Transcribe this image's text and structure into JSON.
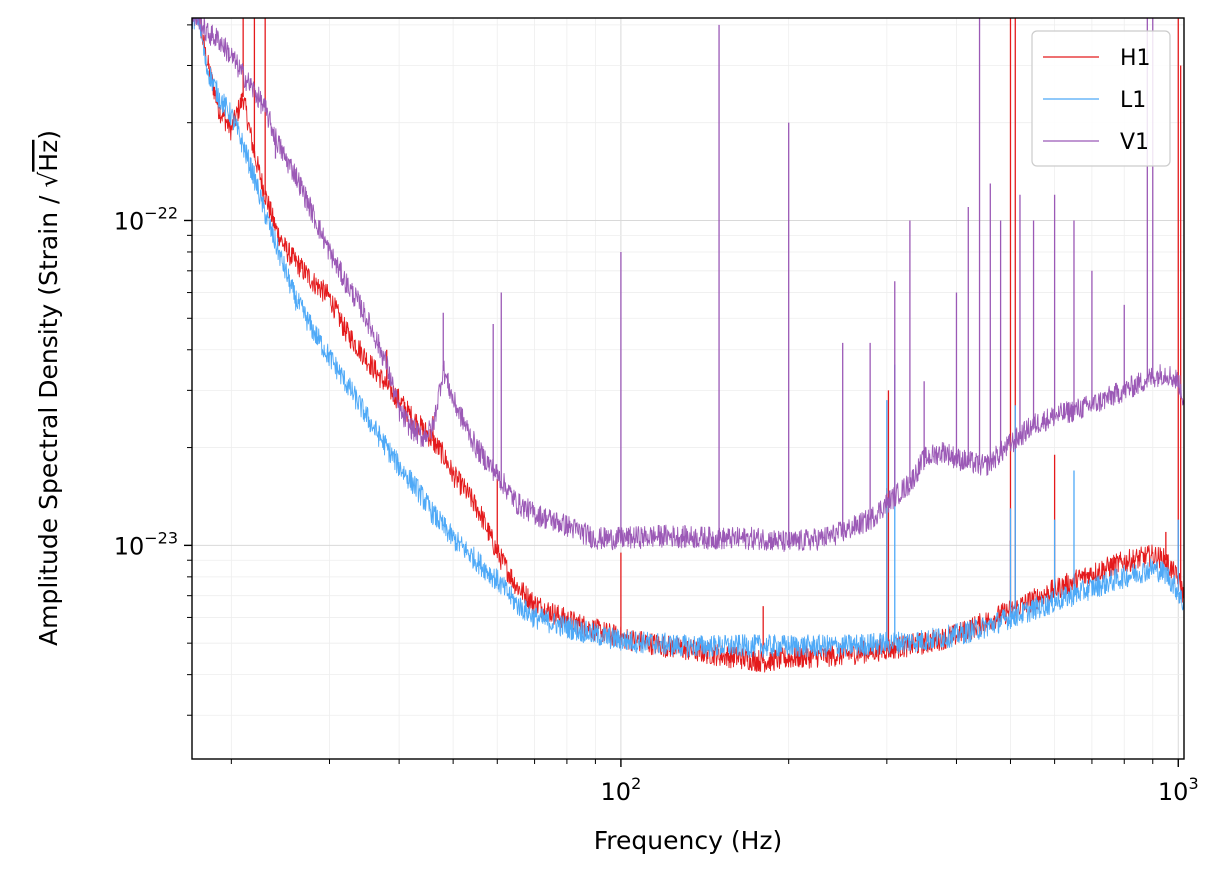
{
  "chart_data": {
    "type": "line",
    "title": "",
    "xlabel": "Frequency (Hz)",
    "ylabel_prefix": "Amplitude Spectral Density (Strain / ",
    "ylabel_sqrt": "√",
    "ylabel_unit": "Hz",
    "ylabel_suffix": ")",
    "xscale": "log",
    "yscale": "log",
    "xlim": [
      17,
      1024
    ],
    "ylim": [
      2.2e-24,
      4.2e-22
    ],
    "grid": true,
    "legend_position": "top-right",
    "x_ticks": [
      {
        "value": 100,
        "base": "10",
        "exp": "2"
      },
      {
        "value": 1000,
        "base": "10",
        "exp": "3"
      }
    ],
    "y_ticks": [
      {
        "value": 1e-23,
        "base": "10",
        "exp": "−23"
      },
      {
        "value": 1e-22,
        "base": "10",
        "exp": "−22"
      }
    ],
    "series": [
      {
        "name": "H1",
        "color": "#e41a1c",
        "points": [
          [
            17.5,
            4.2e-22
          ],
          [
            18,
            3.2e-22
          ],
          [
            19,
            2.2e-22
          ],
          [
            20,
            1.9e-22
          ],
          [
            21,
            2.4e-22
          ],
          [
            22,
            1.6e-22
          ],
          [
            23,
            1.2e-22
          ],
          [
            24,
            9.5e-23
          ],
          [
            25,
            8.2e-23
          ],
          [
            26,
            7.5e-23
          ],
          [
            28,
            6.5e-23
          ],
          [
            30,
            5.8e-23
          ],
          [
            32,
            4.6e-23
          ],
          [
            34,
            4e-23
          ],
          [
            36,
            3.5e-23
          ],
          [
            38,
            3.1e-23
          ],
          [
            40,
            2.8e-23
          ],
          [
            42,
            2.5e-23
          ],
          [
            45,
            2.2e-23
          ],
          [
            48,
            1.9e-23
          ],
          [
            50,
            1.65e-23
          ],
          [
            53,
            1.45e-23
          ],
          [
            56,
            1.25e-23
          ],
          [
            60,
            9.5e-24
          ],
          [
            65,
            7.5e-24
          ],
          [
            70,
            6.6e-24
          ],
          [
            80,
            5.9e-24
          ],
          [
            90,
            5.5e-24
          ],
          [
            100,
            5.2e-24
          ],
          [
            120,
            4.9e-24
          ],
          [
            150,
            4.6e-24
          ],
          [
            180,
            4.4e-24
          ],
          [
            200,
            4.5e-24
          ],
          [
            250,
            4.6e-24
          ],
          [
            300,
            4.8e-24
          ],
          [
            350,
            5e-24
          ],
          [
            400,
            5.3e-24
          ],
          [
            450,
            5.8e-24
          ],
          [
            500,
            6.3e-24
          ],
          [
            600,
            7.3e-24
          ],
          [
            700,
            8.2e-24
          ],
          [
            800,
            8.9e-24
          ],
          [
            900,
            9.3e-24
          ],
          [
            950,
            9e-24
          ],
          [
            1000,
            7.8e-24
          ],
          [
            1024,
            7e-24
          ]
        ],
        "lines": [
          [
            21,
            4.2e-22
          ],
          [
            22,
            4.2e-22
          ],
          [
            23,
            4.2e-22
          ],
          [
            29,
            6.5e-23
          ],
          [
            38,
            4e-23
          ],
          [
            46,
            2.5e-23
          ],
          [
            60,
            1.6e-23
          ],
          [
            100,
            9.5e-24
          ],
          [
            180,
            6.5e-24
          ],
          [
            300,
            1.5e-23
          ],
          [
            302,
            3e-23
          ],
          [
            500,
            4.2e-22
          ],
          [
            510,
            4.2e-22
          ],
          [
            600,
            1.9e-23
          ],
          [
            950,
            1.1e-23
          ],
          [
            1000,
            4.2e-22
          ],
          [
            1010,
            3e-22
          ]
        ]
      },
      {
        "name": "L1",
        "color": "#4ea9f7",
        "points": [
          [
            17.5,
            4.2e-22
          ],
          [
            18,
            3e-22
          ],
          [
            19,
            2.4e-22
          ],
          [
            20,
            2.1e-22
          ],
          [
            21,
            1.7e-22
          ],
          [
            22,
            1.35e-22
          ],
          [
            23,
            1.05e-22
          ],
          [
            24,
            8.5e-23
          ],
          [
            25,
            7e-23
          ],
          [
            26,
            5.8e-23
          ],
          [
            28,
            4.6e-23
          ],
          [
            30,
            3.8e-23
          ],
          [
            32,
            3.2e-23
          ],
          [
            34,
            2.7e-23
          ],
          [
            36,
            2.3e-23
          ],
          [
            38,
            2e-23
          ],
          [
            40,
            1.75e-23
          ],
          [
            43,
            1.5e-23
          ],
          [
            46,
            1.25e-23
          ],
          [
            50,
            1.05e-23
          ],
          [
            55,
            9e-24
          ],
          [
            60,
            7.8e-24
          ],
          [
            65,
            6.6e-24
          ],
          [
            70,
            6e-24
          ],
          [
            80,
            5.6e-24
          ],
          [
            90,
            5.3e-24
          ],
          [
            100,
            5.1e-24
          ],
          [
            130,
            4.9e-24
          ],
          [
            160,
            4.9e-24
          ],
          [
            200,
            4.9e-24
          ],
          [
            250,
            4.9e-24
          ],
          [
            300,
            5e-24
          ],
          [
            350,
            5.1e-24
          ],
          [
            400,
            5.3e-24
          ],
          [
            450,
            5.6e-24
          ],
          [
            500,
            6e-24
          ],
          [
            600,
            6.7e-24
          ],
          [
            700,
            7.4e-24
          ],
          [
            800,
            8e-24
          ],
          [
            900,
            8.5e-24
          ],
          [
            950,
            8.2e-24
          ],
          [
            1000,
            7.2e-24
          ],
          [
            1024,
            6.5e-24
          ]
        ],
        "lines": [
          [
            300,
            2.8e-23
          ],
          [
            310,
            3.6e-23
          ],
          [
            500,
            1.3e-23
          ],
          [
            510,
            2.7e-23
          ],
          [
            600,
            1.2e-23
          ],
          [
            650,
            1.7e-23
          ],
          [
            1000,
            1.2e-23
          ]
        ]
      },
      {
        "name": "V1",
        "color": "#9b59b6",
        "points": [
          [
            17.5,
            4.2e-22
          ],
          [
            18,
            3.8e-22
          ],
          [
            19,
            3.6e-22
          ],
          [
            20,
            3.2e-22
          ],
          [
            21,
            2.8e-22
          ],
          [
            22,
            2.5e-22
          ],
          [
            23,
            2.2e-22
          ],
          [
            24,
            1.8e-22
          ],
          [
            25,
            1.55e-22
          ],
          [
            26,
            1.4e-22
          ],
          [
            28,
            1.05e-22
          ],
          [
            30,
            8e-23
          ],
          [
            32,
            6.5e-23
          ],
          [
            34,
            5.5e-23
          ],
          [
            36,
            4.5e-23
          ],
          [
            38,
            3.6e-23
          ],
          [
            40,
            2.6e-23
          ],
          [
            42,
            2.3e-23
          ],
          [
            44,
            2.15e-23
          ],
          [
            46,
            2.3e-23
          ],
          [
            48,
            3.5e-23
          ],
          [
            50,
            2.8e-23
          ],
          [
            55,
            2e-23
          ],
          [
            60,
            1.65e-23
          ],
          [
            65,
            1.35e-23
          ],
          [
            70,
            1.25e-23
          ],
          [
            80,
            1.15e-23
          ],
          [
            90,
            1.05e-23
          ],
          [
            100,
            1.05e-23
          ],
          [
            120,
            1.07e-23
          ],
          [
            150,
            1.05e-23
          ],
          [
            180,
            1.05e-23
          ],
          [
            200,
            1.02e-23
          ],
          [
            230,
            1.05e-23
          ],
          [
            250,
            1.1e-23
          ],
          [
            280,
            1.2e-23
          ],
          [
            300,
            1.35e-23
          ],
          [
            330,
            1.55e-23
          ],
          [
            350,
            1.85e-23
          ],
          [
            380,
            1.95e-23
          ],
          [
            400,
            1.85e-23
          ],
          [
            450,
            1.75e-23
          ],
          [
            500,
            2.05e-23
          ],
          [
            550,
            2.35e-23
          ],
          [
            600,
            2.5e-23
          ],
          [
            700,
            2.7e-23
          ],
          [
            800,
            3e-23
          ],
          [
            900,
            3.3e-23
          ],
          [
            950,
            3.4e-23
          ],
          [
            1000,
            3.2e-23
          ],
          [
            1024,
            2.8e-23
          ]
        ],
        "lines": [
          [
            24,
            1.55e-22
          ],
          [
            48,
            5.2e-23
          ],
          [
            59,
            4.8e-23
          ],
          [
            61,
            6e-23
          ],
          [
            100,
            8e-23
          ],
          [
            150,
            4e-22
          ],
          [
            200,
            2e-22
          ],
          [
            250,
            4.2e-23
          ],
          [
            280,
            4.2e-23
          ],
          [
            310,
            6.5e-23
          ],
          [
            330,
            1e-22
          ],
          [
            350,
            3.2e-23
          ],
          [
            400,
            6e-23
          ],
          [
            420,
            1.1e-22
          ],
          [
            440,
            4.2e-22
          ],
          [
            460,
            1.3e-22
          ],
          [
            480,
            1e-22
          ],
          [
            520,
            1.2e-22
          ],
          [
            550,
            1e-22
          ],
          [
            600,
            1.2e-22
          ],
          [
            650,
            1e-22
          ],
          [
            700,
            7e-23
          ],
          [
            800,
            5.5e-23
          ],
          [
            880,
            4.2e-22
          ],
          [
            900,
            4.2e-22
          ]
        ]
      }
    ]
  }
}
